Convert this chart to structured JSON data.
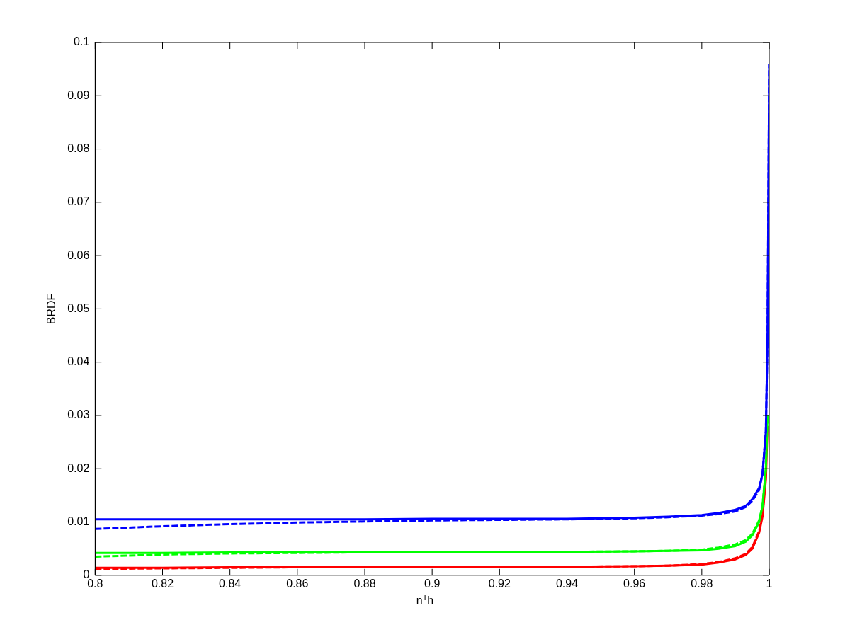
{
  "chart_data": {
    "type": "line",
    "xlabel": "n$^{T}$h",
    "ylabel": "BRDF",
    "x": [
      0.8,
      0.82,
      0.84,
      0.86,
      0.88,
      0.9,
      0.92,
      0.94,
      0.96,
      0.97,
      0.98,
      0.985,
      0.99,
      0.993,
      0.995,
      0.997,
      0.998,
      0.999,
      0.9995,
      1
    ],
    "series": [
      {
        "color": "#0000ff",
        "line_style": "solid",
        "values": [
          0.0105,
          0.0105,
          0.0105,
          0.0105,
          0.0105,
          0.0106,
          0.0106,
          0.0106,
          0.0108,
          0.011,
          0.0113,
          0.0117,
          0.0123,
          0.013,
          0.0143,
          0.0164,
          0.019,
          0.027,
          0.045,
          0.096
        ]
      },
      {
        "color": "#0000ff",
        "line_style": "dashed",
        "values": [
          0.0087,
          0.0092,
          0.0096,
          0.0099,
          0.0101,
          0.0103,
          0.0104,
          0.0105,
          0.0107,
          0.0109,
          0.0112,
          0.0115,
          0.012,
          0.0128,
          0.014,
          0.016,
          0.019,
          0.027,
          0.045,
          0.096
        ]
      },
      {
        "color": "#00ff00",
        "line_style": "solid",
        "values": [
          0.0042,
          0.0042,
          0.0043,
          0.0043,
          0.0043,
          0.0044,
          0.0044,
          0.0044,
          0.0045,
          0.0046,
          0.0047,
          0.005,
          0.0055,
          0.0063,
          0.0075,
          0.01,
          0.013,
          0.02,
          0.03,
          null
        ]
      },
      {
        "color": "#00ff00",
        "line_style": "dashed",
        "values": [
          0.0035,
          0.0039,
          0.0041,
          0.0042,
          0.0043,
          0.0043,
          0.0044,
          0.0044,
          0.0045,
          0.0046,
          0.0048,
          0.0052,
          0.0058,
          0.0066,
          0.0078,
          0.0103,
          0.013,
          0.02,
          0.03,
          null
        ]
      },
      {
        "color": "#ff0000",
        "line_style": "solid",
        "values": [
          0.0014,
          0.0014,
          0.0015,
          0.0015,
          0.0015,
          0.0015,
          0.0016,
          0.0016,
          0.0017,
          0.0018,
          0.002,
          0.0024,
          0.003,
          0.0038,
          0.005,
          0.008,
          0.011,
          0.018,
          0.028,
          null
        ]
      },
      {
        "color": "#ff0000",
        "line_style": "dashed",
        "values": [
          0.0012,
          0.0013,
          0.0014,
          0.0015,
          0.0015,
          0.0015,
          0.0016,
          0.0016,
          0.0017,
          0.0018,
          0.0021,
          0.0025,
          0.0032,
          0.004,
          0.0053,
          0.0083,
          0.0115,
          0.019,
          null,
          null
        ]
      }
    ],
    "xlim": [
      0.8,
      1
    ],
    "xticks": [
      0.8,
      0.82,
      0.84,
      0.86,
      0.88,
      0.9,
      0.92,
      0.94,
      0.96,
      0.98,
      1
    ],
    "ylim": [
      0,
      0.1
    ],
    "yticks": [
      0,
      0.01,
      0.02,
      0.03,
      0.04,
      0.05,
      0.06,
      0.07,
      0.08,
      0.09,
      0.1
    ],
    "grid": false,
    "legend": false,
    "marker": "none"
  }
}
